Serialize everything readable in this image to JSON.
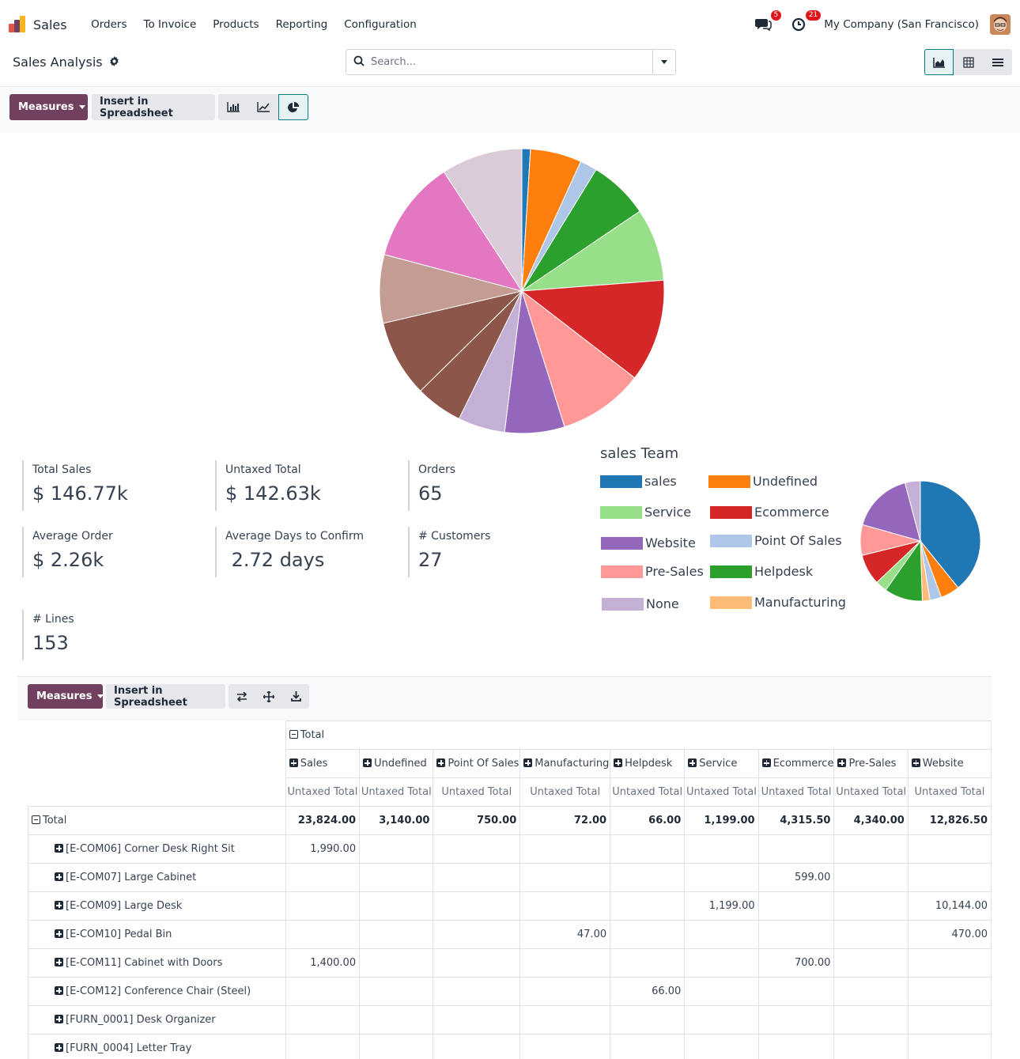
{
  "navbar": {
    "brand": "Sales",
    "menu": [
      "Orders",
      "To Invoice",
      "Products",
      "Reporting",
      "Configuration"
    ],
    "messages_badge": "5",
    "activities_badge": "21",
    "company": "My Company (San Francisco)"
  },
  "control_panel": {
    "title": "Sales Analysis",
    "search_placeholder": "Search..."
  },
  "graph_toolbar": {
    "measures_label": "Measures",
    "insert_label": "Insert in Spreadsheet"
  },
  "chart_data": [
    {
      "type": "pie",
      "labels": [
        "",
        "",
        "",
        "",
        "",
        "",
        "",
        "",
        "",
        "",
        "",
        "",
        "",
        ""
      ],
      "values": [
        1.0,
        6.0,
        2.0,
        7.0,
        8.5,
        12.0,
        10.0,
        7.0,
        5.5,
        5.5,
        9.0,
        8.0,
        12.0,
        9.5
      ],
      "colors": [
        "#1f77b4",
        "#ff7f0e",
        "#aec7e8",
        "#2ca02c",
        "#98df8a",
        "#d62728",
        "#ff9896",
        "#9467bd",
        "#c5b0d5",
        "#8c564b",
        "#8c564b",
        "#c49c94",
        "#e377c2",
        "#dbcbd8"
      ]
    },
    {
      "type": "pie",
      "title": "sales Team",
      "labels": [
        "sales",
        "Undefined",
        "Point Of Sales",
        "Manufacturing",
        "Helpdesk",
        "Service",
        "Ecommerce",
        "Pre-Sales",
        "Website",
        "None"
      ],
      "values": [
        38,
        5,
        3,
        2,
        10,
        3,
        8,
        8,
        16,
        4
      ],
      "colors": [
        "#1f77b4",
        "#ff7f0e",
        "#aec7e8",
        "#ffbb78",
        "#2ca02c",
        "#98df8a",
        "#d62728",
        "#ff9896",
        "#9467bd",
        "#c5b0d5"
      ],
      "legend": "left"
    }
  ],
  "legend": {
    "title": "sales Team",
    "items": [
      {
        "label": "sales",
        "color": "#1f77b4"
      },
      {
        "label": "Undefined",
        "color": "#ff7f0e"
      },
      {
        "label": "Service",
        "color": "#98df8a"
      },
      {
        "label": "Ecommerce",
        "color": "#d62728"
      },
      {
        "label": "Website",
        "color": "#9467bd"
      },
      {
        "label": "Point Of Sales",
        "color": "#aec7e8"
      },
      {
        "label": "Pre-Sales",
        "color": "#ff9896"
      },
      {
        "label": "Helpdesk",
        "color": "#2ca02c"
      },
      {
        "label": "None",
        "color": "#c5b0d5"
      },
      {
        "label": "Manufacturing",
        "color": "#ffbb78"
      }
    ]
  },
  "kpis": [
    {
      "label": "Total Sales",
      "value": "$ 146.77k"
    },
    {
      "label": "Untaxed Total",
      "value": "$ 142.63k"
    },
    {
      "label": "Orders",
      "value": "65"
    },
    {
      "label": "Average Order",
      "value": "$ 2.26k"
    },
    {
      "label": "Average Days to Confirm",
      "value": " 2.72 days"
    },
    {
      "label": "# Customers",
      "value": "27"
    },
    {
      "label": "# Lines",
      "value": "153"
    }
  ],
  "pivot": {
    "measures_label": "Measures",
    "insert_label": "Insert in Spreadsheet",
    "col_total": "Total",
    "columns": [
      "Sales",
      "Undefined",
      "Point Of Sales",
      "Manufacturing",
      "Helpdesk",
      "Service",
      "Ecommerce",
      "Pre-Sales",
      "Website"
    ],
    "measure": "Untaxed Total",
    "total_label": "Total",
    "totals": [
      "23,824.00",
      "3,140.00",
      "750.00",
      "72.00",
      "66.00",
      "1,199.00",
      "4,315.50",
      "4,340.00",
      "12,826.50"
    ],
    "rows": [
      {
        "label": "[E-COM06] Corner Desk Right Sit",
        "cells": [
          "1,990.00",
          "",
          "",
          "",
          "",
          "",
          "",
          "",
          ""
        ]
      },
      {
        "label": "[E-COM07] Large Cabinet",
        "cells": [
          "",
          "",
          "",
          "",
          "",
          "",
          "599.00",
          "",
          ""
        ]
      },
      {
        "label": "[E-COM09] Large Desk",
        "cells": [
          "",
          "",
          "",
          "",
          "",
          "1,199.00",
          "",
          "",
          "10,144.00"
        ]
      },
      {
        "label": "[E-COM10] Pedal Bin",
        "cells": [
          "",
          "",
          "",
          "47.00",
          "",
          "",
          "",
          "",
          "470.00"
        ]
      },
      {
        "label": "[E-COM11] Cabinet with Doors",
        "cells": [
          "1,400.00",
          "",
          "",
          "",
          "",
          "",
          "700.00",
          "",
          ""
        ]
      },
      {
        "label": "[E-COM12] Conference Chair (Steel)",
        "cells": [
          "",
          "",
          "",
          "",
          "66.00",
          "",
          "",
          "",
          ""
        ]
      },
      {
        "label": "[FURN_0001] Desk Organizer",
        "cells": [
          "",
          "",
          "",
          "",
          "",
          "",
          "",
          "",
          ""
        ]
      },
      {
        "label": "[FURN_0004] Letter Tray",
        "cells": [
          "",
          "",
          "",
          "",
          "",
          "",
          "",
          "",
          ""
        ]
      }
    ]
  }
}
